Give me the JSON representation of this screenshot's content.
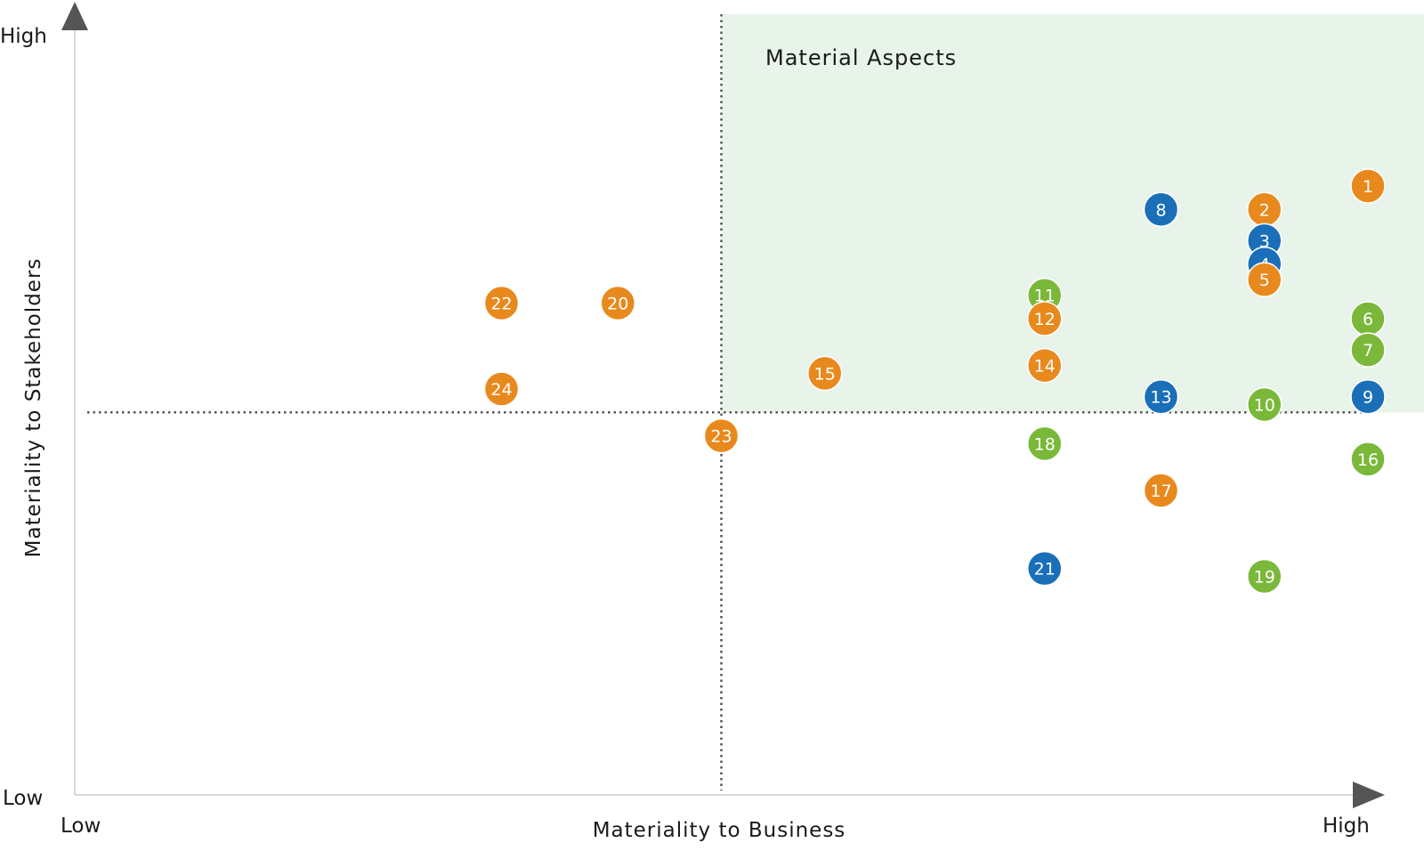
{
  "chart_data": {
    "type": "scatter",
    "region_label": "Material Aspects",
    "xlabel": "Materiality to Business",
    "ylabel": "Materiality to Stakeholders",
    "x_low_label": "Low",
    "x_high_label": "High",
    "y_low_label": "Low",
    "y_high_label": "High",
    "xlim": [
      0,
      100
    ],
    "ylim": [
      0,
      100
    ],
    "threshold_x": 50,
    "threshold_y": 49,
    "colors": {
      "orange": "#e8891e",
      "blue": "#1a6fb8",
      "green": "#7ab83a",
      "region": "#e8f3ea",
      "axis": "#cccccc",
      "arrow": "#555555",
      "threshold": "#555555"
    },
    "points": [
      {
        "label": "1",
        "x": 100,
        "y": 78,
        "color": "orange"
      },
      {
        "label": "2",
        "x": 92,
        "y": 75,
        "color": "orange"
      },
      {
        "label": "3",
        "x": 92,
        "y": 71,
        "color": "blue"
      },
      {
        "label": "4",
        "x": 92,
        "y": 68,
        "color": "blue"
      },
      {
        "label": "5",
        "x": 92,
        "y": 66,
        "color": "orange"
      },
      {
        "label": "6",
        "x": 100,
        "y": 61,
        "color": "green"
      },
      {
        "label": "7",
        "x": 100,
        "y": 57,
        "color": "green"
      },
      {
        "label": "8",
        "x": 84,
        "y": 75,
        "color": "blue"
      },
      {
        "label": "9",
        "x": 100,
        "y": 51,
        "color": "blue"
      },
      {
        "label": "10",
        "x": 92,
        "y": 50,
        "color": "green"
      },
      {
        "label": "11",
        "x": 75,
        "y": 64,
        "color": "green"
      },
      {
        "label": "12",
        "x": 75,
        "y": 61,
        "color": "orange"
      },
      {
        "label": "13",
        "x": 84,
        "y": 51,
        "color": "blue"
      },
      {
        "label": "14",
        "x": 75,
        "y": 55,
        "color": "orange"
      },
      {
        "label": "15",
        "x": 58,
        "y": 54,
        "color": "orange"
      },
      {
        "label": "16",
        "x": 100,
        "y": 43,
        "color": "green"
      },
      {
        "label": "17",
        "x": 84,
        "y": 39,
        "color": "orange"
      },
      {
        "label": "18",
        "x": 75,
        "y": 45,
        "color": "green"
      },
      {
        "label": "19",
        "x": 92,
        "y": 28,
        "color": "green"
      },
      {
        "label": "20",
        "x": 42,
        "y": 63,
        "color": "orange"
      },
      {
        "label": "21",
        "x": 75,
        "y": 29,
        "color": "blue"
      },
      {
        "label": "22",
        "x": 33,
        "y": 63,
        "color": "orange"
      },
      {
        "label": "23",
        "x": 50,
        "y": 46,
        "color": "orange"
      },
      {
        "label": "24",
        "x": 33,
        "y": 52,
        "color": "orange"
      }
    ]
  }
}
